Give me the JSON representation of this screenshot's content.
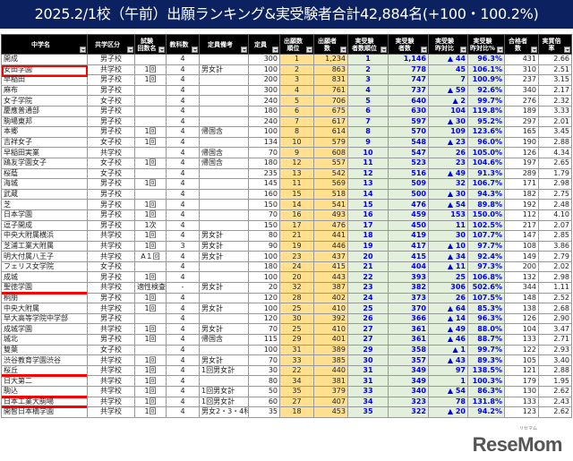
{
  "title": "2025.2/1校（午前）出願ランキング&実受験者合計42,884名(+100・100.2%)",
  "columns": [
    "中学名",
    "共学区分",
    "試験\n回数名",
    "教科数",
    "定員備考",
    "定員",
    "出願数\n順位",
    "出願者数",
    "実受験\n者数順位",
    "実受験\n者数",
    "実受験\n昨対比",
    "実受験\n昨対比%",
    "合格者数",
    "実質倍率"
  ],
  "colors": {
    "title_bg": "#0b2160",
    "applicants_bg": "#ffe08f",
    "examinees_bg": "#e2efda",
    "value_text": "#0000ee",
    "highlight": "#ff0000"
  },
  "rows": [
    [
      "開成",
      "男子校",
      "",
      "4",
      "",
      "300",
      "1",
      "1,234",
      "1",
      "1,146",
      "▲ 44",
      "96.3%",
      "431",
      "2.66",
      ""
    ],
    [
      "安田学園",
      "共学校",
      "1回",
      "4",
      "男女計",
      "100",
      "2",
      "863",
      "2",
      "778",
      "45",
      "106.1%",
      "310",
      "2.51",
      "box"
    ],
    [
      "早稲田",
      "男子校",
      "1回",
      "4",
      "",
      "200",
      "3",
      "831",
      "3",
      "747",
      "7",
      "100.9%",
      "237",
      "3.15",
      ""
    ],
    [
      "麻布",
      "男子校",
      "",
      "4",
      "",
      "300",
      "4",
      "761",
      "4",
      "737",
      "▲ 59",
      "92.6%",
      "340",
      "2.17",
      ""
    ],
    [
      "女子学院",
      "女子校",
      "",
      "4",
      "",
      "240",
      "5",
      "706",
      "5",
      "640",
      "▲ 2",
      "99.7%",
      "276",
      "2.32",
      ""
    ],
    [
      "慶應普通部",
      "男子校",
      "",
      "4",
      "",
      "180",
      "6",
      "675",
      "6",
      "630",
      "104",
      "119.8%",
      "189",
      "3.33",
      ""
    ],
    [
      "駒場東邦",
      "男子校",
      "",
      "4",
      "",
      "240",
      "7",
      "617",
      "7",
      "597",
      "▲ 30",
      "95.2%",
      "297",
      "2.01",
      ""
    ],
    [
      "本郷",
      "男子校",
      "1回",
      "4",
      "帰国含",
      "100",
      "8",
      "614",
      "8",
      "570",
      "109",
      "123.6%",
      "165",
      "3.45",
      ""
    ],
    [
      "吉祥女子",
      "女子校",
      "1回",
      "4",
      "",
      "134",
      "10",
      "579",
      "9",
      "548",
      "▲ 23",
      "96.0%",
      "190",
      "2.88",
      ""
    ],
    [
      "早稲田実業",
      "共学校",
      "",
      "4",
      "帰国含",
      "70",
      "9",
      "608",
      "10",
      "547",
      "26",
      "105.0%",
      "126",
      "4.34",
      ""
    ],
    [
      "鴎友学園女子",
      "女子校",
      "1回",
      "4",
      "帰国含",
      "180",
      "12",
      "557",
      "11",
      "523",
      "23",
      "104.6%",
      "197",
      "2.65",
      ""
    ],
    [
      "桜蔭",
      "女子校",
      "",
      "4",
      "",
      "235",
      "13",
      "542",
      "12",
      "516",
      "▲ 49",
      "91.3%",
      "289",
      "1.79",
      ""
    ],
    [
      "海城",
      "男子校",
      "1回",
      "4",
      "",
      "145",
      "11",
      "569",
      "13",
      "509",
      "32",
      "106.7%",
      "171",
      "2.98",
      ""
    ],
    [
      "武蔵",
      "男子校",
      "",
      "4",
      "",
      "160",
      "15",
      "518",
      "14",
      "500",
      "▲ 30",
      "94.3%",
      "182",
      "2.75",
      ""
    ],
    [
      "芝",
      "男子校",
      "1回",
      "4",
      "",
      "150",
      "14",
      "541",
      "15",
      "476",
      "▲ 54",
      "89.8%",
      "192",
      "2.48",
      ""
    ],
    [
      "日本学園",
      "男子校",
      "1回",
      "4",
      "",
      "70",
      "16",
      "493",
      "16",
      "459",
      "153",
      "150.0%",
      "112",
      "4.10",
      ""
    ],
    [
      "逗子開成",
      "男子校",
      "1次",
      "4",
      "",
      "150",
      "17",
      "476",
      "17",
      "450",
      "11",
      "102.5%",
      "217",
      "2.07",
      ""
    ],
    [
      "中央大附属横浜",
      "共学校",
      "1回",
      "4",
      "男女計",
      "80",
      "21",
      "441",
      "18",
      "419",
      "30",
      "107.7%",
      "147",
      "2.85",
      ""
    ],
    [
      "芝浦工業大附属",
      "共学校",
      "1回",
      "3",
      "男女計",
      "90",
      "19",
      "446",
      "19",
      "417",
      "▲ 10",
      "97.7%",
      "108",
      "3.86",
      ""
    ],
    [
      "明大付属八王子",
      "共学校",
      "A１回",
      "4",
      "男女計",
      "100",
      "23",
      "437",
      "20",
      "415",
      "▲ 34",
      "92.4%",
      "149",
      "2.79",
      ""
    ],
    [
      "フェリス女学院",
      "女子校",
      "",
      "4",
      "",
      "180",
      "24",
      "415",
      "21",
      "404",
      "▲ 11",
      "97.3%",
      "200",
      "2.02",
      ""
    ],
    [
      "成城",
      "男子校",
      "1回",
      "4",
      "",
      "100",
      "20",
      "443",
      "22",
      "393",
      "25",
      "106.8%",
      "132",
      "2.98",
      ""
    ],
    [
      "聖徳学園",
      "共学校",
      "適性検査型",
      "-",
      "男女計",
      "20",
      "32",
      "387",
      "23",
      "382",
      "306",
      "502.6%",
      "344",
      "1.11",
      "underline"
    ],
    [
      "桐朋",
      "男子校",
      "1回",
      "4",
      "",
      "120",
      "28",
      "402",
      "24",
      "373",
      "26",
      "107.5%",
      "148",
      "2.52",
      ""
    ],
    [
      "中央大附属",
      "共学校",
      "1回",
      "4",
      "男女計",
      "100",
      "25",
      "410",
      "25",
      "370",
      "▲ 64",
      "85.3%",
      "138",
      "2.68",
      ""
    ],
    [
      "早大高等学院中学部",
      "男子校",
      "",
      "4",
      "",
      "120",
      "30",
      "392",
      "26",
      "366",
      "▲ 14",
      "96.3%",
      "126",
      "2.90",
      ""
    ],
    [
      "成城学園",
      "共学校",
      "1回",
      "4",
      "男女計",
      "70",
      "25",
      "410",
      "27",
      "361",
      "▲ 49",
      "88.0%",
      "104",
      "3.47",
      ""
    ],
    [
      "城北",
      "男子校",
      "1回",
      "4",
      "帰国含",
      "115",
      "29",
      "401",
      "27",
      "361",
      "▲ 46",
      "88.7%",
      "133",
      "2.71",
      ""
    ],
    [
      "雙葉",
      "女子校",
      "",
      "4",
      "",
      "100",
      "31",
      "389",
      "29",
      "358",
      "▲ 1",
      "99.7%",
      "122",
      "2.93",
      ""
    ],
    [
      "渋谷教育学園渋谷",
      "共学校",
      "1回",
      "4",
      "男女計",
      "70",
      "33",
      "385",
      "30",
      "357",
      "▲ 43",
      "89.3%",
      "105",
      "3.40",
      ""
    ],
    [
      "桜丘",
      "共学校",
      "1回",
      "4",
      "1回男女計",
      "30",
      "22",
      "440",
      "31",
      "349",
      "97",
      "138.5%",
      "121",
      "2.88",
      "underline"
    ],
    [
      "日大第二",
      "共学校",
      "1回",
      "4",
      "",
      "80",
      "34",
      "381",
      "31",
      "349",
      "1",
      "100.3%",
      "179",
      "1.95",
      ""
    ],
    [
      "駒込",
      "共学校",
      "1回",
      "4",
      "1回男女計",
      "50",
      "35",
      "379",
      "33",
      "340",
      "▲ 54",
      "86.3%",
      "130",
      "2.62",
      "underline"
    ],
    [
      "日本工業大駒場",
      "共学校",
      "1回",
      "4",
      "1回男女計",
      "60",
      "27",
      "407",
      "34",
      "323",
      "78",
      "131.8%",
      "133",
      "2.43",
      "underline"
    ],
    [
      "開智日本橋学園",
      "共学校",
      "1回",
      "4",
      "男女2・3・4科計",
      "35",
      "18",
      "453",
      "35",
      "322",
      "▲ 20",
      "94.2%",
      "123",
      "2.62",
      ""
    ]
  ],
  "logo": {
    "text": "ReseMom",
    "sub": "リセマム"
  }
}
